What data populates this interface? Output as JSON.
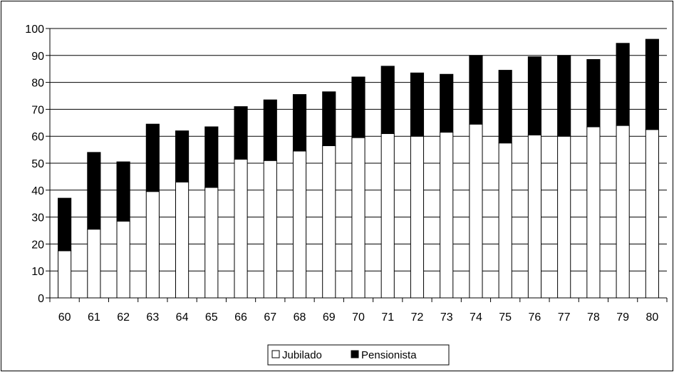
{
  "chart_data": {
    "type": "bar",
    "stacked": true,
    "categories": [
      "60",
      "61",
      "62",
      "63",
      "64",
      "65",
      "66",
      "67",
      "68",
      "69",
      "70",
      "71",
      "72",
      "73",
      "74",
      "75",
      "76",
      "77",
      "78",
      "79",
      "80"
    ],
    "series": [
      {
        "name": "Jubilado",
        "color": "#ffffff",
        "values": [
          17.5,
          25.5,
          28.5,
          39.5,
          43,
          41,
          51.5,
          51,
          54.5,
          56.5,
          59.5,
          61,
          60,
          61.5,
          64.5,
          57.5,
          60.5,
          60,
          63.5,
          64,
          62.5
        ]
      },
      {
        "name": "Pensionista",
        "color": "#000000",
        "values": [
          19.5,
          28.5,
          22,
          25,
          19,
          22.5,
          19.5,
          22.5,
          21,
          20,
          22.5,
          25,
          23.5,
          21.5,
          25.5,
          27,
          29,
          30,
          25,
          30.5,
          33.5
        ]
      }
    ],
    "y_ticks": [
      "0",
      "10",
      "20",
      "30",
      "40",
      "50",
      "60",
      "70",
      "80",
      "90",
      "100"
    ],
    "ylim": [
      0,
      100
    ],
    "grid": true,
    "legend_position": "bottom-center"
  }
}
